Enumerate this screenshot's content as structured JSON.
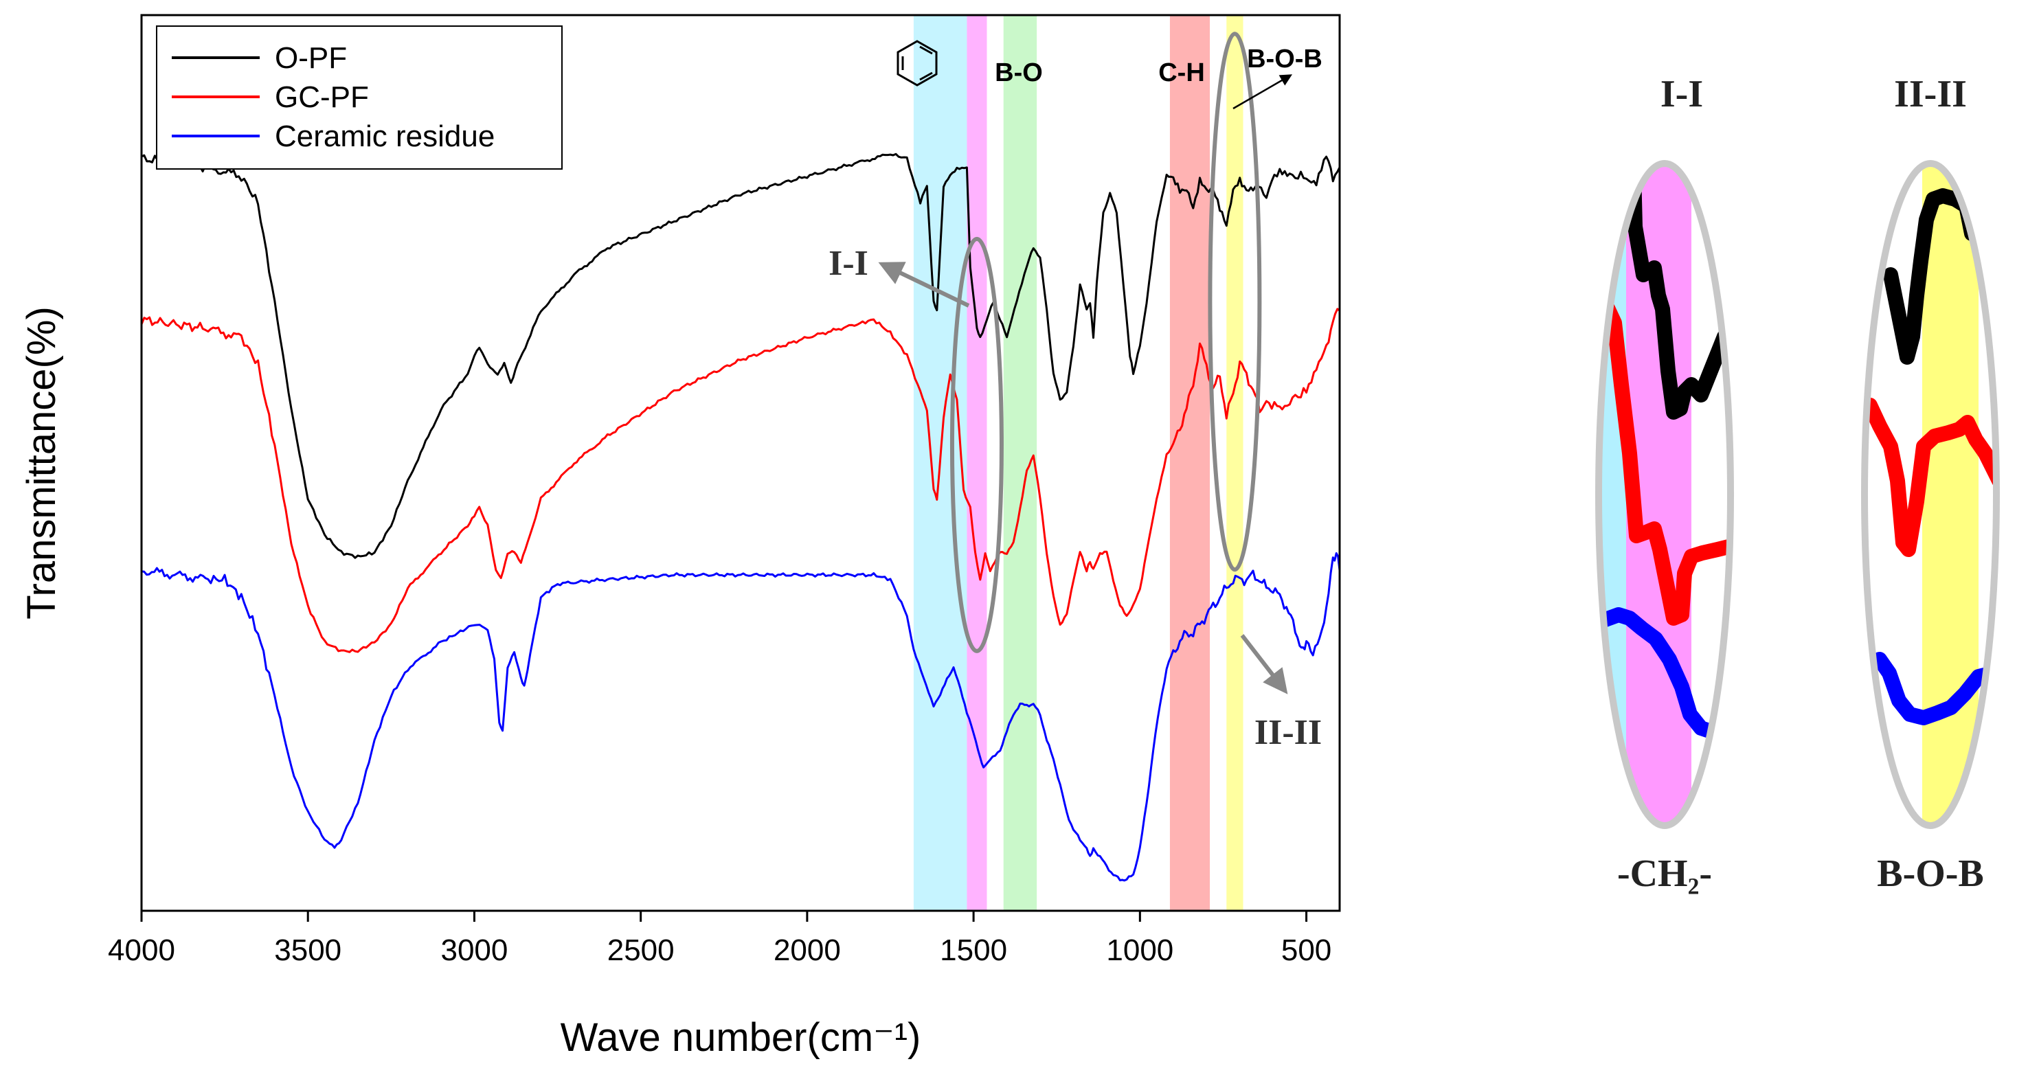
{
  "chart_data": {
    "type": "line",
    "title": "",
    "xlabel": "Wave number(cm⁻¹)",
    "ylabel": "Transmittance(%)",
    "xlim": [
      4000,
      400
    ],
    "x_reversed": true,
    "ylim": [
      0,
      100
    ],
    "y_ticks_shown": false,
    "xticks": [
      4000,
      3500,
      3000,
      2500,
      2000,
      1500,
      1000,
      500
    ],
    "xtick_labels": [
      "4000",
      "3500",
      "3000",
      "2500",
      "2000",
      "1500",
      "1000",
      "500"
    ],
    "legend": {
      "position": "top-left"
    },
    "series": [
      {
        "name": "O-PF",
        "color": "#000000",
        "points": [
          [
            4000,
            84
          ],
          [
            3800,
            83
          ],
          [
            3700,
            82
          ],
          [
            3650,
            79
          ],
          [
            3600,
            68
          ],
          [
            3550,
            56
          ],
          [
            3500,
            46
          ],
          [
            3450,
            42
          ],
          [
            3400,
            40
          ],
          [
            3350,
            39.5
          ],
          [
            3300,
            40
          ],
          [
            3250,
            43
          ],
          [
            3200,
            48
          ],
          [
            3100,
            56
          ],
          [
            3020,
            60
          ],
          [
            3000,
            62
          ],
          [
            2985,
            63
          ],
          [
            2960,
            61
          ],
          [
            2930,
            60
          ],
          [
            2910,
            61
          ],
          [
            2890,
            59
          ],
          [
            2870,
            61
          ],
          [
            2800,
            67
          ],
          [
            2700,
            71
          ],
          [
            2600,
            74
          ],
          [
            2400,
            77
          ],
          [
            2200,
            80
          ],
          [
            2000,
            82
          ],
          [
            1850,
            83.5
          ],
          [
            1750,
            84.5
          ],
          [
            1700,
            84
          ],
          [
            1660,
            79
          ],
          [
            1640,
            81
          ],
          [
            1620,
            68
          ],
          [
            1610,
            67
          ],
          [
            1590,
            81
          ],
          [
            1570,
            82
          ],
          [
            1550,
            83
          ],
          [
            1520,
            83
          ],
          [
            1510,
            72
          ],
          [
            1490,
            65
          ],
          [
            1480,
            64
          ],
          [
            1460,
            66
          ],
          [
            1440,
            68
          ],
          [
            1420,
            66
          ],
          [
            1400,
            64
          ],
          [
            1370,
            68
          ],
          [
            1340,
            72
          ],
          [
            1320,
            74
          ],
          [
            1300,
            73
          ],
          [
            1280,
            67
          ],
          [
            1260,
            60
          ],
          [
            1240,
            57
          ],
          [
            1220,
            58
          ],
          [
            1200,
            63
          ],
          [
            1180,
            70
          ],
          [
            1160,
            67
          ],
          [
            1150,
            68
          ],
          [
            1140,
            64
          ],
          [
            1130,
            70
          ],
          [
            1110,
            78
          ],
          [
            1090,
            80
          ],
          [
            1070,
            78
          ],
          [
            1050,
            70
          ],
          [
            1030,
            62
          ],
          [
            1020,
            60
          ],
          [
            1000,
            63
          ],
          [
            980,
            68
          ],
          [
            950,
            77
          ],
          [
            920,
            82
          ],
          [
            900,
            82
          ],
          [
            880,
            80
          ],
          [
            860,
            81
          ],
          [
            840,
            78
          ],
          [
            820,
            82
          ],
          [
            800,
            80
          ],
          [
            780,
            81
          ],
          [
            760,
            78
          ],
          [
            740,
            77
          ],
          [
            720,
            80
          ],
          [
            700,
            82
          ],
          [
            680,
            80
          ],
          [
            660,
            81
          ],
          [
            620,
            80
          ],
          [
            580,
            83
          ],
          [
            550,
            82
          ],
          [
            500,
            82
          ],
          [
            470,
            81
          ],
          [
            440,
            84
          ],
          [
            420,
            82
          ],
          [
            400,
            83
          ]
        ]
      },
      {
        "name": "GC-PF",
        "color": "#ff0000",
        "points": [
          [
            4000,
            66
          ],
          [
            3800,
            65
          ],
          [
            3700,
            64
          ],
          [
            3650,
            61
          ],
          [
            3600,
            52
          ],
          [
            3550,
            41
          ],
          [
            3500,
            34
          ],
          [
            3450,
            30
          ],
          [
            3400,
            29
          ],
          [
            3350,
            29
          ],
          [
            3300,
            30
          ],
          [
            3250,
            32
          ],
          [
            3200,
            36
          ],
          [
            3100,
            40
          ],
          [
            3020,
            43
          ],
          [
            3000,
            44
          ],
          [
            2985,
            45
          ],
          [
            2960,
            43
          ],
          [
            2935,
            38
          ],
          [
            2920,
            37
          ],
          [
            2900,
            40
          ],
          [
            2880,
            40
          ],
          [
            2860,
            39
          ],
          [
            2840,
            41
          ],
          [
            2800,
            46
          ],
          [
            2700,
            50
          ],
          [
            2600,
            53
          ],
          [
            2400,
            58
          ],
          [
            2200,
            61.5
          ],
          [
            2000,
            64
          ],
          [
            1850,
            65.5
          ],
          [
            1800,
            66
          ],
          [
            1750,
            64.5
          ],
          [
            1700,
            62
          ],
          [
            1660,
            58
          ],
          [
            1640,
            56
          ],
          [
            1620,
            47
          ],
          [
            1610,
            46
          ],
          [
            1590,
            55
          ],
          [
            1570,
            60
          ],
          [
            1550,
            57
          ],
          [
            1530,
            47
          ],
          [
            1510,
            45
          ],
          [
            1495,
            40
          ],
          [
            1480,
            37
          ],
          [
            1465,
            40
          ],
          [
            1450,
            38
          ],
          [
            1420,
            40
          ],
          [
            1400,
            40
          ],
          [
            1380,
            41
          ],
          [
            1360,
            45
          ],
          [
            1340,
            49
          ],
          [
            1320,
            51
          ],
          [
            1300,
            46
          ],
          [
            1280,
            40
          ],
          [
            1260,
            35
          ],
          [
            1240,
            32
          ],
          [
            1220,
            33
          ],
          [
            1200,
            37
          ],
          [
            1180,
            40
          ],
          [
            1160,
            38
          ],
          [
            1150,
            39
          ],
          [
            1140,
            38
          ],
          [
            1120,
            40
          ],
          [
            1100,
            40
          ],
          [
            1080,
            37
          ],
          [
            1060,
            34
          ],
          [
            1040,
            33
          ],
          [
            1020,
            34
          ],
          [
            1000,
            36
          ],
          [
            980,
            40
          ],
          [
            950,
            46
          ],
          [
            920,
            51
          ],
          [
            900,
            52
          ],
          [
            880,
            54
          ],
          [
            860,
            56
          ],
          [
            840,
            59
          ],
          [
            820,
            63
          ],
          [
            800,
            61
          ],
          [
            780,
            58
          ],
          [
            760,
            60
          ],
          [
            740,
            55
          ],
          [
            720,
            58
          ],
          [
            700,
            61
          ],
          [
            680,
            60
          ],
          [
            660,
            58
          ],
          [
            640,
            56
          ],
          [
            620,
            57
          ],
          [
            580,
            56
          ],
          [
            550,
            57
          ],
          [
            500,
            58
          ],
          [
            470,
            61
          ],
          [
            440,
            63
          ],
          [
            420,
            66
          ],
          [
            400,
            67
          ]
        ]
      },
      {
        "name": "Ceramic residue",
        "color": "#0000ff",
        "points": [
          [
            4000,
            38
          ],
          [
            3900,
            37.5
          ],
          [
            3800,
            37
          ],
          [
            3750,
            37
          ],
          [
            3700,
            35
          ],
          [
            3650,
            31
          ],
          [
            3600,
            24
          ],
          [
            3550,
            16
          ],
          [
            3500,
            11
          ],
          [
            3450,
            8
          ],
          [
            3420,
            7
          ],
          [
            3400,
            8
          ],
          [
            3350,
            12
          ],
          [
            3300,
            19
          ],
          [
            3250,
            24
          ],
          [
            3200,
            27
          ],
          [
            3100,
            30
          ],
          [
            3050,
            31
          ],
          [
            3000,
            32
          ],
          [
            2960,
            31.5
          ],
          [
            2940,
            28
          ],
          [
            2925,
            21
          ],
          [
            2915,
            20
          ],
          [
            2900,
            27
          ],
          [
            2880,
            29
          ],
          [
            2860,
            26
          ],
          [
            2850,
            25
          ],
          [
            2840,
            27
          ],
          [
            2800,
            35
          ],
          [
            2750,
            36.5
          ],
          [
            2600,
            37
          ],
          [
            2400,
            37.5
          ],
          [
            2200,
            37.5
          ],
          [
            2000,
            37.5
          ],
          [
            1800,
            37.5
          ],
          [
            1750,
            37
          ],
          [
            1700,
            33
          ],
          [
            1680,
            29
          ],
          [
            1650,
            26
          ],
          [
            1620,
            23
          ],
          [
            1600,
            24
          ],
          [
            1580,
            26
          ],
          [
            1560,
            27
          ],
          [
            1540,
            25
          ],
          [
            1520,
            22
          ],
          [
            1500,
            20
          ],
          [
            1480,
            17
          ],
          [
            1470,
            16
          ],
          [
            1450,
            17
          ],
          [
            1420,
            18
          ],
          [
            1400,
            20
          ],
          [
            1380,
            22
          ],
          [
            1360,
            23
          ],
          [
            1340,
            23
          ],
          [
            1320,
            23
          ],
          [
            1300,
            22
          ],
          [
            1280,
            19
          ],
          [
            1260,
            17
          ],
          [
            1240,
            14
          ],
          [
            1220,
            11
          ],
          [
            1200,
            9
          ],
          [
            1180,
            8
          ],
          [
            1160,
            7
          ],
          [
            1150,
            6
          ],
          [
            1140,
            7
          ],
          [
            1120,
            6
          ],
          [
            1100,
            5
          ],
          [
            1080,
            4
          ],
          [
            1060,
            3.5
          ],
          [
            1040,
            3.5
          ],
          [
            1020,
            4
          ],
          [
            1000,
            7
          ],
          [
            980,
            12
          ],
          [
            960,
            18
          ],
          [
            940,
            23
          ],
          [
            920,
            27
          ],
          [
            900,
            29
          ],
          [
            880,
            30
          ],
          [
            860,
            31
          ],
          [
            840,
            31
          ],
          [
            820,
            32
          ],
          [
            800,
            33
          ],
          [
            780,
            34
          ],
          [
            760,
            35
          ],
          [
            740,
            36
          ],
          [
            720,
            37
          ],
          [
            700,
            37
          ],
          [
            680,
            37
          ],
          [
            660,
            37.5
          ],
          [
            640,
            37
          ],
          [
            620,
            36
          ],
          [
            600,
            36
          ],
          [
            580,
            35
          ],
          [
            560,
            34
          ],
          [
            540,
            32
          ],
          [
            520,
            30
          ],
          [
            510,
            29
          ],
          [
            500,
            30
          ],
          [
            480,
            29
          ],
          [
            460,
            30
          ],
          [
            440,
            34
          ],
          [
            420,
            39
          ],
          [
            410,
            40
          ],
          [
            400,
            38
          ]
        ]
      }
    ],
    "bands": [
      {
        "label": "",
        "icon": "benzene-ring",
        "from": 1680,
        "to": 1520,
        "color": "#b3f0ff"
      },
      {
        "label": "",
        "from": 1520,
        "to": 1460,
        "color": "#ff99ff"
      },
      {
        "label": "B-O",
        "from": 1410,
        "to": 1310,
        "color": "#b8f5b8"
      },
      {
        "label": "C-H",
        "from": 910,
        "to": 790,
        "color": "#ff9a9a"
      },
      {
        "label": "B-O-B",
        "from": 740,
        "to": 690,
        "color": "#ffff80"
      }
    ],
    "highlights": [
      {
        "label": "I-I",
        "center_x": 1490,
        "y_center": 52
      },
      {
        "label": "II-II",
        "center_x": 715,
        "y_center": 68
      }
    ],
    "insets": [
      {
        "title": "I-I",
        "caption": "-CH₂-"
      },
      {
        "title": "II-II",
        "caption": "B-O-B"
      }
    ]
  }
}
